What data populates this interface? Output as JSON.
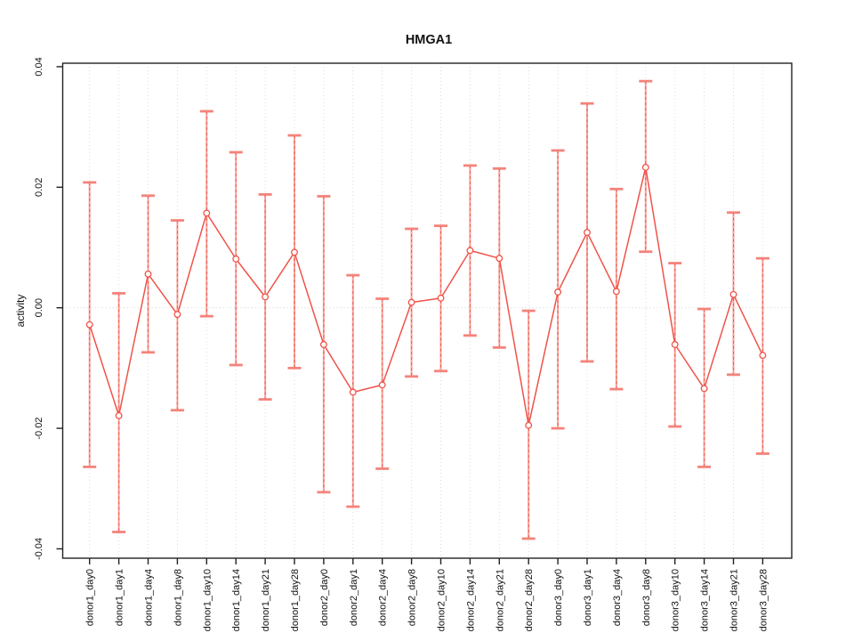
{
  "chart_data": {
    "type": "line",
    "title": "HMGA1",
    "xlabel": "",
    "ylabel": "activity",
    "ylim": [
      -0.04,
      0.04
    ],
    "yticks": [
      -0.04,
      -0.02,
      0.0,
      0.02,
      0.04
    ],
    "ytick_labels": [
      "-0.04",
      "-0.02",
      "0.00",
      "0.02",
      "0.04"
    ],
    "grid": "vertical dotted gridline at each category; dotted horizontal line at y=0",
    "legend_position": "none",
    "point_style": "open-circle",
    "error_bars": true,
    "colors": {
      "series_line": "#ef5349",
      "point_stroke": "#ef5349",
      "errorbar_light": "#f6a29b",
      "errorbar_cap": "#f4837b",
      "errorbar_core": "#ee4b40",
      "grid_line": "#dcdcdc",
      "zero_line": "#d0d0d0",
      "axis_line": "#222222"
    },
    "categories": [
      "donor1_day0",
      "donor1_day1",
      "donor1_day4",
      "donor1_day8",
      "donor1_day10",
      "donor1_day14",
      "donor1_day21",
      "donor1_day28",
      "donor2_day0",
      "donor2_day1",
      "donor2_day4",
      "donor2_day8",
      "donor2_day10",
      "donor2_day14",
      "donor2_day21",
      "donor2_day28",
      "donor3_day0",
      "donor3_day1",
      "donor3_day4",
      "donor3_day8",
      "donor3_day10",
      "donor3_day14",
      "donor3_day21",
      "donor3_day28"
    ],
    "series": [
      {
        "name": "activity",
        "values": [
          -0.0028,
          -0.0179,
          0.0056,
          -0.0011,
          0.0157,
          0.0081,
          0.0018,
          0.0092,
          -0.0061,
          -0.014,
          -0.0128,
          0.0009,
          0.0016,
          0.0095,
          0.0082,
          -0.0195,
          0.0026,
          0.0125,
          0.0027,
          0.0233,
          -0.0061,
          -0.0134,
          0.0022,
          -0.0079
        ],
        "error_upper": [
          0.0208,
          0.0024,
          0.0186,
          0.0145,
          0.0326,
          0.0258,
          0.0188,
          0.0286,
          0.0185,
          0.0054,
          0.0015,
          0.0131,
          0.0136,
          0.0236,
          0.0231,
          -0.0005,
          0.0261,
          0.0339,
          0.0197,
          0.0376,
          0.0074,
          -0.0002,
          0.0158,
          0.0082
        ],
        "error_lower": [
          -0.0264,
          -0.0372,
          -0.0074,
          -0.017,
          -0.0014,
          -0.0095,
          -0.0152,
          -0.01,
          -0.0306,
          -0.033,
          -0.0267,
          -0.0114,
          -0.0105,
          -0.0046,
          -0.0066,
          -0.0383,
          -0.02,
          -0.0089,
          -0.0135,
          0.0093,
          -0.0197,
          -0.0264,
          -0.0111,
          -0.0242
        ]
      }
    ]
  }
}
